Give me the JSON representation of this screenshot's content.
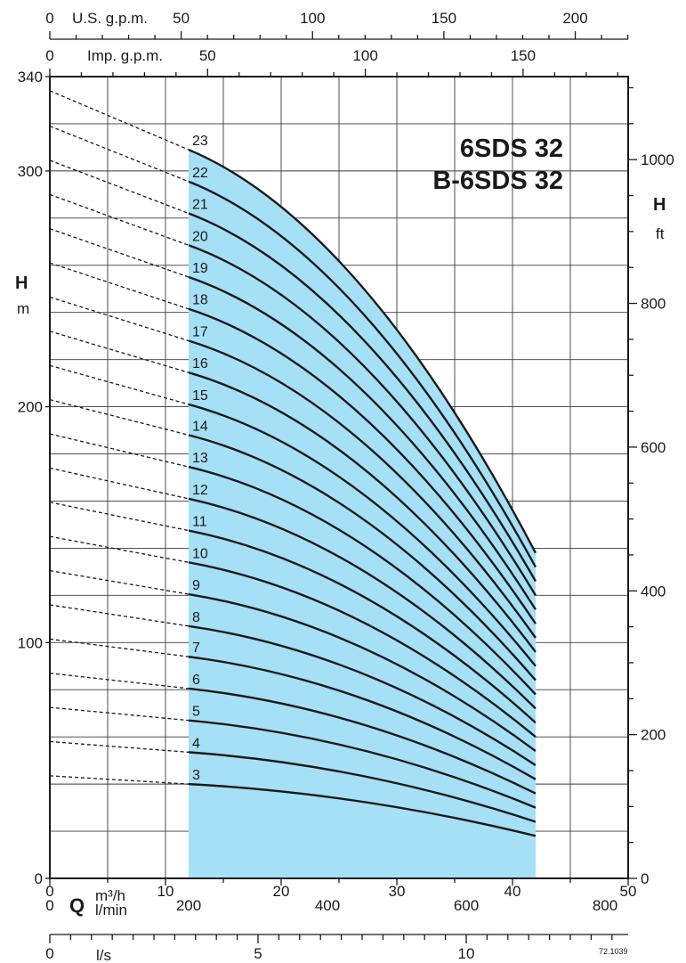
{
  "chart_data": {
    "type": "line",
    "title_lines": [
      "6SDS 32",
      "B-6SDS 32"
    ],
    "y_axis": {
      "label": "H",
      "unit": "m",
      "ticks": [
        0,
        100,
        200,
        300,
        340
      ],
      "range": [
        0,
        340
      ]
    },
    "y2_axis": {
      "label": "H",
      "unit": "ft",
      "ticks": [
        0,
        200,
        400,
        600,
        800,
        1000
      ]
    },
    "x_axis": {
      "label": "Q",
      "unit": "m³/h",
      "ticks": [
        0,
        10,
        20,
        30,
        40,
        50
      ],
      "range": [
        0,
        50
      ]
    },
    "x_lmin": {
      "unit": "l/min",
      "ticks": [
        0,
        200,
        400,
        600,
        800
      ]
    },
    "x_ls": {
      "unit": "l/s",
      "ticks": [
        0,
        5,
        10
      ]
    },
    "x_top_us": {
      "unit": "U.S. g.p.m.",
      "ticks": [
        0,
        50,
        100,
        150,
        200
      ]
    },
    "x_top_imp": {
      "unit": "Imp. g.p.m.",
      "ticks": [
        0,
        50,
        100,
        150
      ]
    },
    "operating_range": [
      12,
      42
    ],
    "code": "72.1039",
    "series": [
      {
        "stage": "3",
        "shutoff": 43.5,
        "points": [
          [
            12,
            40
          ],
          [
            42,
            18
          ]
        ]
      },
      {
        "stage": "4",
        "shutoff": 58,
        "points": [
          [
            12,
            53.5
          ],
          [
            42,
            24
          ]
        ]
      },
      {
        "stage": "5",
        "shutoff": 72.5,
        "points": [
          [
            12,
            67
          ],
          [
            42,
            30
          ]
        ]
      },
      {
        "stage": "6",
        "shutoff": 87,
        "points": [
          [
            12,
            80.5
          ],
          [
            42,
            36
          ]
        ]
      },
      {
        "stage": "7",
        "shutoff": 101.5,
        "points": [
          [
            12,
            94
          ],
          [
            42,
            42
          ]
        ]
      },
      {
        "stage": "8",
        "shutoff": 116,
        "points": [
          [
            12,
            107
          ],
          [
            42,
            48
          ]
        ]
      },
      {
        "stage": "9",
        "shutoff": 130.5,
        "points": [
          [
            12,
            120.5
          ],
          [
            42,
            54
          ]
        ]
      },
      {
        "stage": "10",
        "shutoff": 145,
        "points": [
          [
            12,
            134
          ],
          [
            42,
            60
          ]
        ]
      },
      {
        "stage": "11",
        "shutoff": 159.5,
        "points": [
          [
            12,
            147.5
          ],
          [
            42,
            66
          ]
        ]
      },
      {
        "stage": "12",
        "shutoff": 174,
        "points": [
          [
            12,
            161
          ],
          [
            42,
            72
          ]
        ]
      },
      {
        "stage": "13",
        "shutoff": 188.5,
        "points": [
          [
            12,
            174.5
          ],
          [
            42,
            78
          ]
        ]
      },
      {
        "stage": "14",
        "shutoff": 203,
        "points": [
          [
            12,
            188
          ],
          [
            42,
            84
          ]
        ]
      },
      {
        "stage": "15",
        "shutoff": 217.5,
        "points": [
          [
            12,
            201
          ],
          [
            42,
            90
          ]
        ]
      },
      {
        "stage": "16",
        "shutoff": 232,
        "points": [
          [
            12,
            214.5
          ],
          [
            42,
            96
          ]
        ]
      },
      {
        "stage": "17",
        "shutoff": 246.5,
        "points": [
          [
            12,
            228
          ],
          [
            42,
            102
          ]
        ]
      },
      {
        "stage": "18",
        "shutoff": 261,
        "points": [
          [
            12,
            241.5
          ],
          [
            42,
            108
          ]
        ]
      },
      {
        "stage": "19",
        "shutoff": 275.5,
        "points": [
          [
            12,
            255
          ],
          [
            42,
            114
          ]
        ]
      },
      {
        "stage": "20",
        "shutoff": 290,
        "points": [
          [
            12,
            268.5
          ],
          [
            42,
            120
          ]
        ]
      },
      {
        "stage": "21",
        "shutoff": 304.5,
        "points": [
          [
            12,
            282
          ],
          [
            42,
            126
          ]
        ]
      },
      {
        "stage": "22",
        "shutoff": 319,
        "points": [
          [
            12,
            295.5
          ],
          [
            42,
            132
          ]
        ]
      },
      {
        "stage": "23",
        "shutoff": 334,
        "points": [
          [
            12,
            309
          ],
          [
            42,
            138
          ]
        ]
      }
    ]
  },
  "colors": {
    "fill": "#a6e0f6",
    "curve": "#1a1a1a",
    "grid": "#3a3a3a"
  }
}
